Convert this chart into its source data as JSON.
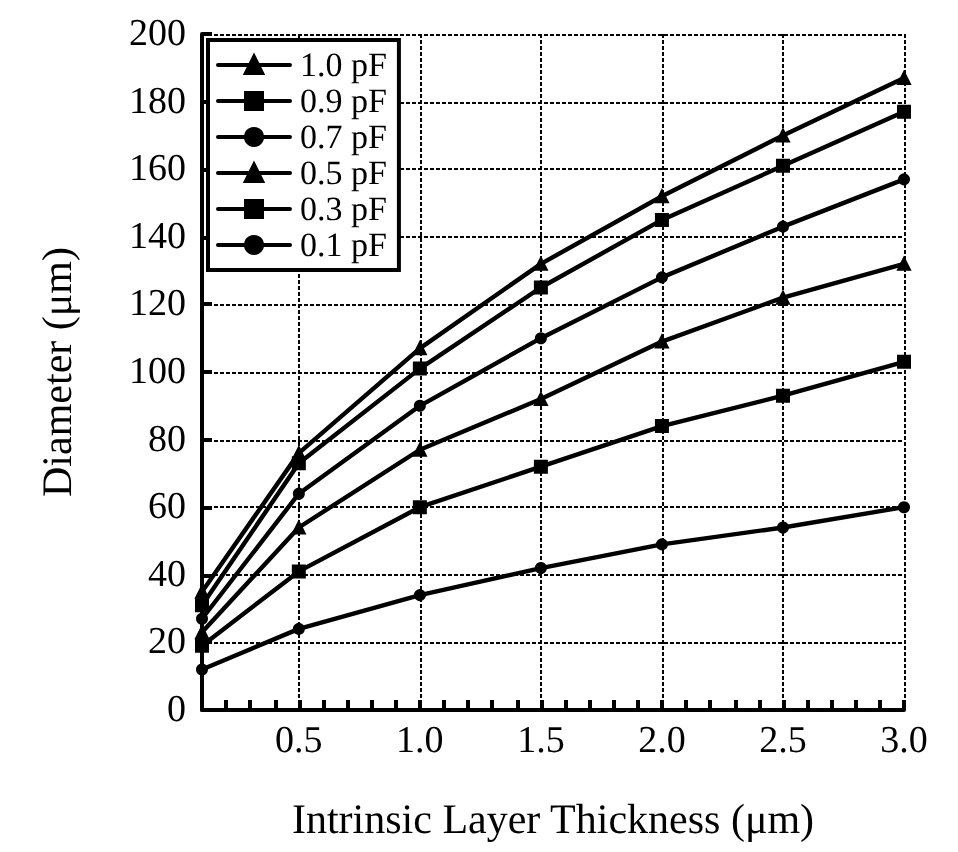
{
  "chart_data": {
    "type": "line",
    "xlabel": "Intrinsic Layer Thickness (μm)",
    "ylabel": "Diameter (μm)",
    "x": [
      0.1,
      0.5,
      1.0,
      1.5,
      2.0,
      2.5,
      3.0
    ],
    "series": [
      {
        "name": "1.0 pF",
        "color": "#000000",
        "marker": "triangle",
        "values": [
          35,
          76,
          107,
          132,
          152,
          170,
          187
        ]
      },
      {
        "name": "0.9 pF",
        "color": "#000000",
        "marker": "square",
        "values": [
          31,
          73,
          101,
          125,
          145,
          161,
          177
        ]
      },
      {
        "name": "0.7 pF",
        "color": "#000000",
        "marker": "circle",
        "values": [
          27,
          64,
          90,
          110,
          128,
          143,
          157
        ]
      },
      {
        "name": "0.5 pF",
        "color": "#000000",
        "marker": "triangle",
        "values": [
          23,
          54,
          77,
          92,
          109,
          122,
          132
        ]
      },
      {
        "name": "0.3 pF",
        "color": "#000000",
        "marker": "square",
        "values": [
          19,
          41,
          60,
          72,
          84,
          93,
          103
        ]
      },
      {
        "name": "0.1 pF",
        "color": "#000000",
        "marker": "circle",
        "values": [
          12,
          24,
          34,
          42,
          49,
          54,
          60
        ]
      }
    ],
    "xlim": [
      0.1,
      3.0
    ],
    "xticks": [
      {
        "value": 0.2,
        "label": null
      },
      {
        "value": 0.3,
        "label": null
      },
      {
        "value": 0.4,
        "label": null
      },
      "0.5",
      {
        "value": 0.6,
        "label": null
      },
      {
        "value": 0.7,
        "label": null
      },
      {
        "value": 0.8,
        "label": null
      },
      {
        "value": 0.9,
        "label": null
      },
      {
        "value": 1.0,
        "label": "1.0"
      },
      {
        "value": 1.1,
        "label": null
      },
      {
        "value": 1.2,
        "label": null
      },
      {
        "value": 1.3,
        "label": null
      },
      {
        "value": 1.4,
        "label": null
      },
      {
        "value": 1.5,
        "label": "1.5"
      },
      {
        "value": 1.6,
        "label": null
      },
      {
        "value": 1.7,
        "label": null
      },
      {
        "value": 1.8,
        "label": null
      },
      {
        "value": 1.9,
        "label": null
      },
      {
        "value": 2.0,
        "label": "2.0"
      },
      {
        "value": 2.1,
        "label": null
      },
      {
        "value": 2.2,
        "label": null
      },
      {
        "value": 2.3,
        "label": null
      },
      {
        "value": 2.4,
        "label": null
      },
      {
        "value": 2.5,
        "label": "2.5"
      },
      {
        "value": 2.6,
        "label": null
      },
      {
        "value": 2.7,
        "label": null
      },
      {
        "value": 2.8,
        "label": null
      },
      {
        "value": 2.9,
        "label": null
      },
      {
        "value": 3.0,
        "label": "3.0"
      }
    ],
    "ylim": [
      0,
      200
    ],
    "yticks": [
      0,
      20,
      40,
      60,
      80,
      100,
      120,
      140,
      160,
      180,
      200
    ],
    "grid": true,
    "legend": "top left",
    "line_style": "solid"
  }
}
